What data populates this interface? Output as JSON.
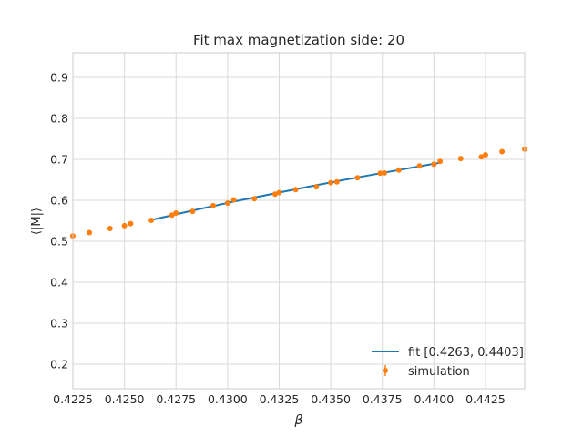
{
  "chart_data": {
    "type": "scatter",
    "title": "Fit max magnetization side: 20",
    "xlabel": "β",
    "ylabel": "⟨|M|⟩",
    "xlim": [
      0.4225,
      0.4444
    ],
    "ylim": [
      0.14,
      0.96
    ],
    "xticks": [
      0.4225,
      0.425,
      0.4275,
      0.43,
      0.4325,
      0.435,
      0.4375,
      0.44,
      0.4425
    ],
    "xtick_labels": [
      "0.4225",
      "0.4250",
      "0.4275",
      "0.4300",
      "0.4325",
      "0.4350",
      "0.4375",
      "0.4400",
      "0.4425"
    ],
    "yticks": [
      0.2,
      0.3,
      0.4,
      0.5,
      0.6,
      0.7,
      0.8,
      0.9
    ],
    "ytick_labels": [
      "0.2",
      "0.3",
      "0.4",
      "0.5",
      "0.6",
      "0.7",
      "0.8",
      "0.9"
    ],
    "grid": true,
    "legend_position": "bottom-right",
    "series": [
      {
        "name": "simulation",
        "kind": "scatter",
        "color": "#ff7f0e",
        "x": [
          0.4225,
          0.4233,
          0.4243,
          0.425,
          0.4253,
          0.4263,
          0.4273,
          0.4275,
          0.4283,
          0.4293,
          0.43,
          0.4303,
          0.4313,
          0.4323,
          0.4325,
          0.4333,
          0.4343,
          0.435,
          0.4353,
          0.4363,
          0.4374,
          0.4376,
          0.4383,
          0.4393,
          0.44,
          0.4403,
          0.4413,
          0.4423,
          0.4425,
          0.4433,
          0.4444
        ],
        "y": [
          0.513,
          0.521,
          0.531,
          0.538,
          0.543,
          0.551,
          0.564,
          0.569,
          0.573,
          0.587,
          0.593,
          0.601,
          0.604,
          0.615,
          0.619,
          0.626,
          0.633,
          0.643,
          0.645,
          0.655,
          0.666,
          0.667,
          0.674,
          0.684,
          0.688,
          0.695,
          0.702,
          0.706,
          0.711,
          0.719,
          0.725
        ]
      },
      {
        "name": "fit [0.4263, 0.4403]",
        "kind": "line",
        "color": "#1f77b4",
        "x": [
          0.4263,
          0.4283,
          0.4303,
          0.4323,
          0.4343,
          0.4363,
          0.4383,
          0.4403
        ],
        "y": [
          0.552,
          0.575,
          0.597,
          0.617,
          0.637,
          0.656,
          0.674,
          0.692
        ]
      }
    ]
  }
}
